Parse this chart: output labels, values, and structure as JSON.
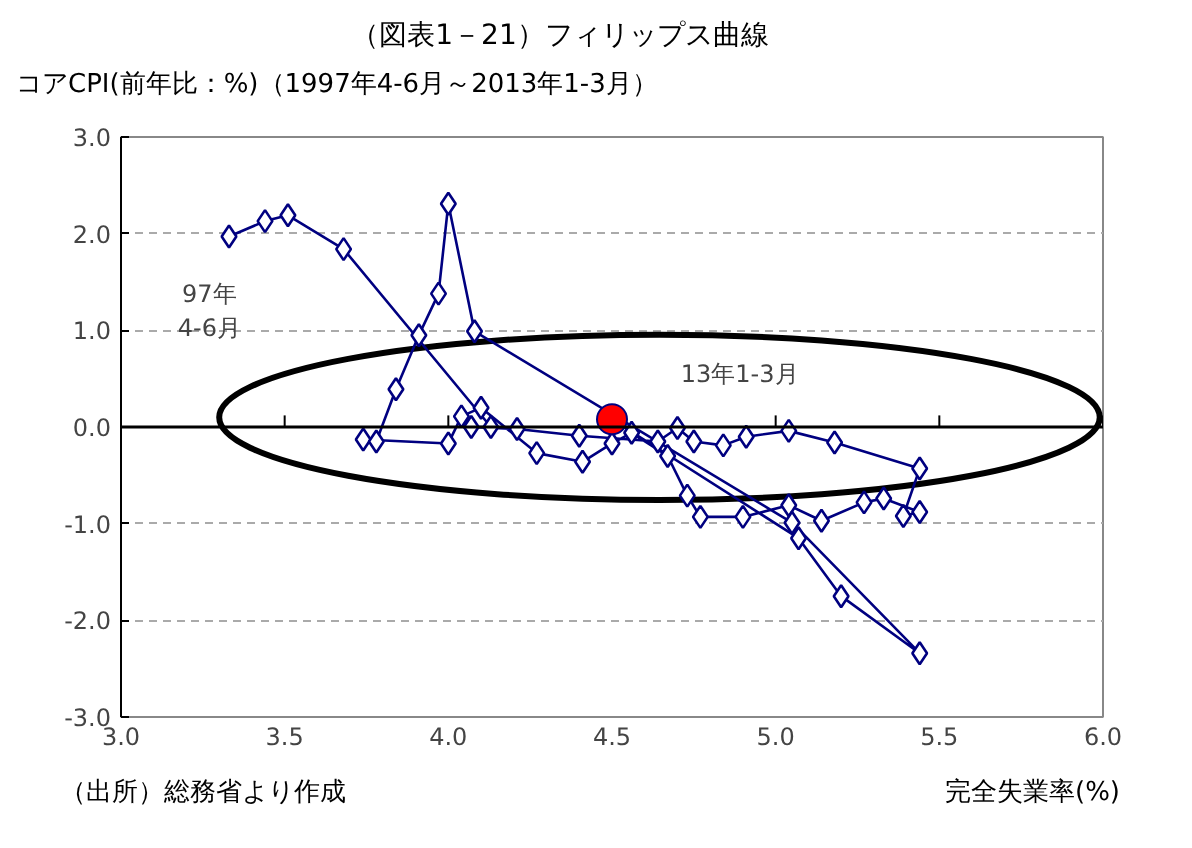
{
  "chart_data": {
    "type": "line",
    "title": "（図表1－21）フィリップス曲線",
    "subtitle": "（1997年4-6月～2013年1-3月）",
    "ylabel": "コアCPI(前年比：%)",
    "xlabel": "完全失業率(%)",
    "annotations": [
      "97年\n4-6月",
      "13年1-3月",
      "（出所）総務省より作成"
    ],
    "series": [
      {
        "color": "#000080",
        "marker": "diamond",
        "x": [
          3.33,
          3.44,
          3.51,
          3.68,
          4.13,
          4.07,
          4.21,
          4.4,
          4.64,
          4.7,
          4.75,
          4.84,
          4.91,
          5.04,
          5.18,
          5.44,
          5.39,
          5.44,
          5.33,
          5.27,
          5.14,
          5.04,
          4.9,
          4.77,
          4.73,
          4.67,
          4.56,
          4.5,
          4.41,
          4.27,
          4.1,
          4.04,
          4.0,
          3.74,
          3.78,
          3.84,
          3.91,
          3.97,
          4.0,
          4.08,
          5.05,
          5.44,
          5.2,
          5.07,
          4.5
        ],
        "values": [
          1.97,
          2.13,
          2.19,
          1.84,
          0.0,
          0.0,
          -0.02,
          -0.09,
          -0.15,
          -0.01,
          -0.15,
          -0.19,
          -0.1,
          -0.04,
          -0.16,
          -0.43,
          -0.92,
          -0.88,
          -0.74,
          -0.78,
          -0.97,
          -0.81,
          -0.93,
          -0.93,
          -0.71,
          -0.3,
          -0.06,
          -0.17,
          -0.36,
          -0.27,
          0.2,
          0.11,
          -0.17,
          -0.13,
          -0.15,
          0.39,
          0.95,
          1.38,
          2.31,
          0.99,
          -0.99,
          -2.34,
          -1.75,
          -1.15,
          0.08
        ]
      },
      {
        "type": "scatter",
        "color": "#ff0000",
        "marker": "circle",
        "x": [
          4.5
        ],
        "values": [
          0.08
        ]
      }
    ],
    "xlim": [
      3.0,
      6.0
    ],
    "xticks": [
      {
        "value": 3,
        "label": "3.0"
      },
      3.5,
      {
        "value": 4,
        "label": "4.0"
      },
      4.5,
      {
        "value": 5,
        "label": "5.0"
      },
      5.5,
      {
        "value": 6,
        "label": "6.0"
      }
    ],
    "ylim": [
      -3.0,
      3.0
    ],
    "yticks": [
      {
        "value": -3,
        "label": "-3.0"
      },
      {
        "value": -2,
        "label": "-2.0"
      },
      {
        "value": -1,
        "label": "-1.0"
      },
      {
        "value": 0,
        "label": "0.0"
      },
      {
        "value": 1,
        "label": "1.0"
      },
      {
        "value": 2,
        "label": "2.0"
      },
      {
        "value": 3,
        "label": "3.0"
      }
    ],
    "ref_lines": [
      {
        "axis": "y",
        "value": 0,
        "color": "#000000"
      }
    ],
    "grid": "y"
  }
}
